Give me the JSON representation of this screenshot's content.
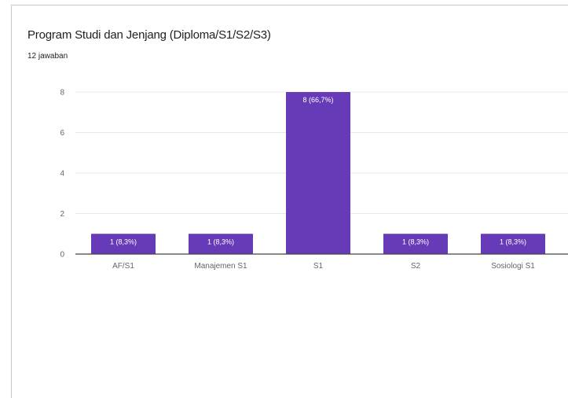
{
  "title": "Program Studi dan Jenjang (Diploma/S1/S2/S3)",
  "subtitle": "12 jawaban",
  "colors": {
    "bar": "#673ab7",
    "grid": "#e8e8e8",
    "axis": "#444444",
    "text": "#666666"
  },
  "chart_data": {
    "type": "bar",
    "categories": [
      "AF/S1",
      "Manajemen S1",
      "S1",
      "S2",
      "Sosiologi S1"
    ],
    "values": [
      1,
      1,
      8,
      1,
      1
    ],
    "data_labels": [
      "1 (8,3%)",
      "1 (8,3%)",
      "8 (66,7%)",
      "1 (8,3%)",
      "1 (8,3%)"
    ],
    "yticks": [
      0,
      2,
      4,
      6,
      8
    ],
    "ylim": [
      0,
      8
    ],
    "grid": true,
    "legend": "none"
  }
}
